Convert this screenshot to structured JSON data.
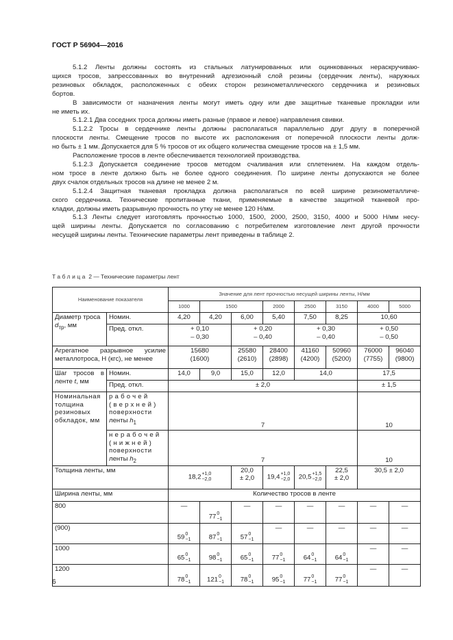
{
  "header": "ГОСТ Р 56904—2016",
  "paragraphs": [
    [
      "5.1.2 Ленты должны состоять из стальных латунированных или оцинкованных нераскручиваю-",
      "щихся тросов, запрессованных во внутренний адгезионный слой резины (сердечник ленты), наружных",
      "резиновых обкладок, расположенных с обеих сторон резинометаллического сердечника и резиновых",
      "бортов."
    ],
    [
      "В зависимости от назначения ленты могут иметь одну или две защитные тканевые прокладки или",
      "не иметь их."
    ],
    [
      "5.1.2.1 Два соседних троса должны иметь разные (правое и левое) направления свивки."
    ],
    [
      "5.1.2.2 Тросы в сердечнике ленты должны располагаться параллельно друг другу в поперечной",
      "плоскости ленты. Смещение тросов по высоте их расположения от поперечной плоскости ленты долж-",
      "но быть ± 1 мм. Допускается для 5 % тросов от их общего количества смещение тросов на ± 1,5 мм."
    ],
    [
      "Расположение тросов в ленте обеспечивается технологией производства."
    ],
    [
      "5.1.2.3 Допускается соединение тросов методом счаливания или сплетением. На каждом отдель-",
      "ном тросе в ленте должно быть не более одного соединения. По ширине ленты допускаются не более",
      "двух счалок отдельных тросов на длине не менее 2 м."
    ],
    [
      "5.1.2.4 Защитная тканевая прокладка должна располагаться по всей ширине резинометалличе-",
      "ского сердечника. Технические пропитанные ткани, применяемые в качестве защитной тканевой про-",
      "кладки, должны иметь разрывную прочность по утку не менее 120 Н/мм."
    ],
    [
      "5.1.3 Ленты следует изготовлять прочностью 1000, 1500, 2000, 2500, 3150, 4000 и 5000 Н/мм несу-",
      "щей ширины ленты. Допускается по согласованию с потребителем изготовление лент другой прочности",
      "несущей ширины ленты. Технические параметры лент приведены в таблице 2."
    ]
  ],
  "table": {
    "caption_word": "Таблица",
    "caption_rest": "2 — Технические параметры лент",
    "col_name": "Наименование показателя",
    "col_values": "Значение для лент прочностью несущей ширины ленты, Н/мм",
    "strengths": [
      "1000",
      "1500",
      "2000",
      "2500",
      "3150",
      "4000",
      "5000"
    ],
    "diam_label": "Диаметр троса",
    "diam_unit": "d",
    "diam_sub": "тр",
    "diam_mm": ", мм",
    "nom": "Номин.",
    "dev": "Пред. откл.",
    "diam_nom": [
      "4,20",
      "4,20",
      "6,00",
      "5,40",
      "7,50",
      "8,25",
      "10,60"
    ],
    "diam_dev": [
      [
        "+ 0,10",
        "– 0,30"
      ],
      [
        "+ 0,20",
        "– 0,40"
      ],
      [
        "+ 0,30",
        "– 0,40"
      ],
      [
        "+ 0,50",
        "– 0,50"
      ]
    ],
    "force_label": "Агрегатное разрывное усилие металлотроса, Н (кгс), не менее",
    "force": [
      [
        "15680",
        "(1600)"
      ],
      [
        "25580",
        "(2610)"
      ],
      [
        "28400",
        "(2898)"
      ],
      [
        "41160",
        "(4200)"
      ],
      [
        "50960",
        "(5200)"
      ],
      [
        "76000",
        "(7755)"
      ],
      [
        "96040",
        "(9800)"
      ]
    ],
    "pitch_label": "Шаг тросов в ленте",
    "pitch_var": "t",
    "pitch_mm": ", мм",
    "pitch_nom": [
      "14,0",
      "9,0",
      "15,0",
      "12,0",
      "14,0",
      "17,5"
    ],
    "pitch_dev": [
      "± 2,0",
      "± 1,5"
    ],
    "cover_label": "Номинальная толщина резиновых обкладок, мм",
    "cover_top": [
      "рабочей",
      "(верхней)",
      "поверхности",
      "ленты h",
      "1"
    ],
    "cover_bot": [
      "нерабочей",
      "(нижней)",
      "поверхности",
      "ленты h",
      "2"
    ],
    "cover_vals": [
      "7",
      "10"
    ],
    "thick_label": "Толщина ленты, мм",
    "thick": [
      [
        "18,2",
        "+1,0",
        "−2,0"
      ],
      [
        "20,0",
        "± 2,0"
      ],
      [
        "19,4",
        "+1,0",
        "−2,0"
      ],
      [
        "20,5",
        "+1,5",
        "−2,0"
      ],
      [
        "22,5",
        "± 2,0"
      ],
      [
        "30,5 ± 2,0"
      ]
    ],
    "width_label": "Ширина ленты, мм",
    "count_label": "Количество тросов в ленте",
    "widths": [
      {
        "w": "800",
        "v": [
          "—",
          [
            "77",
            "0",
            "−1"
          ],
          "—",
          "—",
          "—",
          "—",
          "—",
          "—"
        ]
      },
      {
        "w": "(900)",
        "v": [
          [
            "59",
            "0",
            "−1"
          ],
          [
            "87",
            "0",
            "−1"
          ],
          [
            "57",
            "0",
            "−1"
          ],
          "—",
          "—",
          "—",
          "—",
          "—"
        ]
      },
      {
        "w": "1000",
        "v": [
          [
            "65",
            "0",
            "−1"
          ],
          [
            "98",
            "0",
            "−1"
          ],
          [
            "65",
            "0",
            "−1"
          ],
          [
            "77",
            "0",
            "−1"
          ],
          [
            "64",
            "0",
            "−1"
          ],
          [
            "64",
            "0",
            "−1"
          ],
          "—",
          "—"
        ]
      },
      {
        "w": "1200",
        "v": [
          [
            "78",
            "0",
            "−1"
          ],
          [
            "121",
            "0",
            "−1"
          ],
          [
            "78",
            "0",
            "−1"
          ],
          [
            "95",
            "0",
            "−1"
          ],
          [
            "77",
            "0",
            "−1"
          ],
          [
            "77",
            "0",
            "−1"
          ],
          "—",
          "—"
        ]
      }
    ]
  },
  "page_number": "6"
}
